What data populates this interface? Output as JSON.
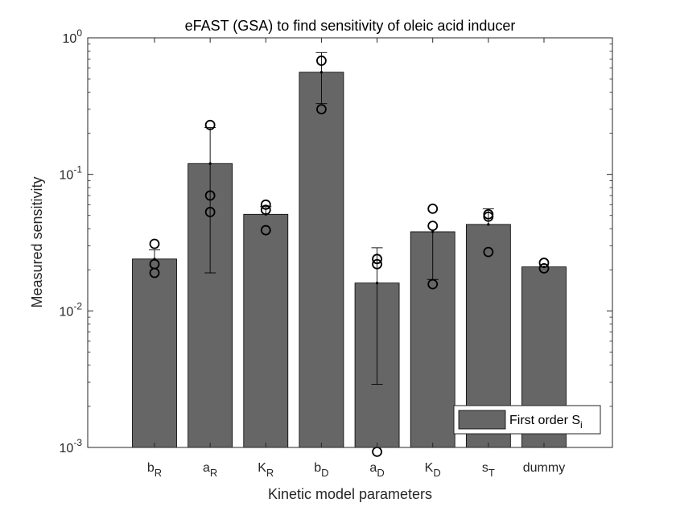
{
  "chart_data": {
    "type": "bar",
    "title": "eFAST (GSA) to find sensitivity of oleic acid inducer",
    "xlabel": "Kinetic model parameters",
    "ylabel": "Measured sensitivity",
    "yscale": "log",
    "ylim": [
      0.001,
      1
    ],
    "y_ticks": [
      {
        "value": 0.001,
        "base": "10",
        "exp": "-3"
      },
      {
        "value": 0.01,
        "base": "10",
        "exp": "-2"
      },
      {
        "value": 0.1,
        "base": "10",
        "exp": "-1"
      },
      {
        "value": 1,
        "base": "10",
        "exp": "0"
      }
    ],
    "categories": [
      {
        "main": "b",
        "sub": "R"
      },
      {
        "main": "a",
        "sub": "R"
      },
      {
        "main": "K",
        "sub": "R"
      },
      {
        "main": "b",
        "sub": "D"
      },
      {
        "main": "a",
        "sub": "D"
      },
      {
        "main": "K",
        "sub": "D"
      },
      {
        "main": "s",
        "sub": "T"
      },
      {
        "main": "dummy",
        "sub": ""
      }
    ],
    "series": [
      {
        "name": "First order S",
        "name_sub": "i",
        "color": "#666666",
        "values": [
          0.024,
          0.12,
          0.051,
          0.56,
          0.016,
          0.038,
          0.043,
          0.021
        ]
      }
    ],
    "error_bars": [
      {
        "lower": null,
        "upper": 0.028
      },
      {
        "lower": 0.019,
        "upper": 0.22
      },
      {
        "lower": null,
        "upper": 0.058
      },
      {
        "lower": 0.33,
        "upper": 0.78
      },
      {
        "lower": 0.0029,
        "upper": 0.029
      },
      {
        "lower": 0.017,
        "upper": null
      },
      {
        "lower": null,
        "upper": 0.056
      },
      {
        "lower": null,
        "upper": null
      }
    ],
    "replicates": [
      [
        0.031,
        0.022,
        0.019
      ],
      [
        0.23,
        0.07,
        0.053
      ],
      [
        0.06,
        0.055,
        0.039
      ],
      [
        0.68,
        0.3
      ],
      [
        0.024,
        0.022,
        0.00093
      ],
      [
        0.056,
        0.042,
        0.0157
      ],
      [
        0.051,
        0.049,
        0.027
      ],
      [
        0.0225,
        0.0205
      ]
    ],
    "legend_position": "bottom-right",
    "grid": false
  }
}
